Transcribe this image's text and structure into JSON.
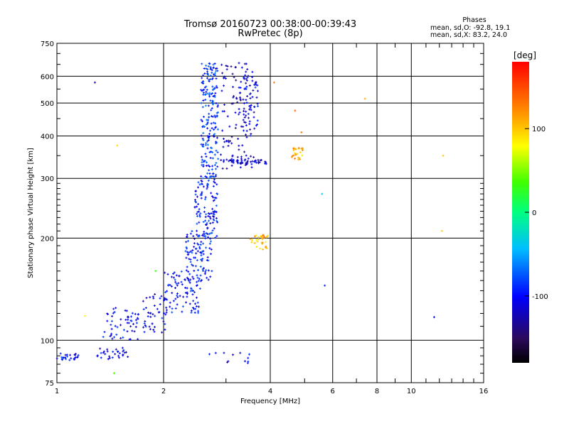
{
  "header": {
    "title_line1": "Tromsø 20160723 00:38:00-00:39:43",
    "title_line2": "RwPretec (8p)",
    "phases_heading": "Phases",
    "phases_o": "mean, sd,O: -92.8, 19.1",
    "phases_x": "mean, sd,X:  83.2, 24.0"
  },
  "colorbar": {
    "label": "[deg]",
    "ticks": [
      "100",
      "0",
      "-100"
    ],
    "tick_values": [
      100,
      0,
      -100
    ],
    "range": [
      -180,
      180
    ]
  },
  "chart_data": {
    "type": "scatter",
    "title": "Tromsø 20160723 00:38:00-00:39:43",
    "subtitle": "RwPretec (8p)",
    "xlabel": "Frequency [MHz]",
    "ylabel": "Stationary phase Virtual Height [km]",
    "x_scale": "log",
    "y_scale": "log",
    "xlim": [
      1,
      16
    ],
    "ylim": [
      75,
      750
    ],
    "x_ticks": [
      1,
      2,
      4,
      6,
      8,
      10,
      16
    ],
    "x_tick_labels": [
      "1",
      "2",
      "4",
      "6",
      "8",
      "10",
      "16"
    ],
    "y_ticks": [
      75,
      100,
      200,
      300,
      400,
      500,
      600,
      750
    ],
    "y_tick_labels": [
      "75",
      "100",
      "200",
      "300",
      "400",
      "500",
      "600",
      "750"
    ],
    "grid": true,
    "colorscale": "phase (deg), rainbow",
    "clusters": [
      {
        "f": [
          1.0,
          1.15
        ],
        "h": [
          87,
          92
        ],
        "phase": -100,
        "n": 25
      },
      {
        "f": [
          1.3,
          1.6
        ],
        "h": [
          88,
          95
        ],
        "phase": -110,
        "n": 30
      },
      {
        "f": [
          1.35,
          1.7
        ],
        "h": [
          100,
          125
        ],
        "phase": -105,
        "n": 55
      },
      {
        "f": [
          1.75,
          2.05
        ],
        "h": [
          105,
          140
        ],
        "phase": -105,
        "n": 45
      },
      {
        "f": [
          2.0,
          2.55
        ],
        "h": [
          120,
          160
        ],
        "phase": -100,
        "n": 90
      },
      {
        "f": [
          2.3,
          2.75
        ],
        "h": [
          150,
          210
        ],
        "phase": -95,
        "n": 90
      },
      {
        "f": [
          2.45,
          2.85
        ],
        "h": [
          200,
          300
        ],
        "phase": -95,
        "n": 110
      },
      {
        "f": [
          2.55,
          2.85
        ],
        "h": [
          300,
          660
        ],
        "phase": -85,
        "n": 200
      },
      {
        "f": [
          2.9,
          3.6
        ],
        "h": [
          320,
          660
        ],
        "phase": -120,
        "n": 120
      },
      {
        "f": [
          3.05,
          3.9
        ],
        "h": [
          330,
          340
        ],
        "phase": -115,
        "n": 40
      },
      {
        "f": [
          3.25,
          3.7
        ],
        "h": [
          400,
          600
        ],
        "phase": -105,
        "n": 50
      },
      {
        "f": [
          3.5,
          3.95
        ],
        "h": [
          185,
          205
        ],
        "phase": 105,
        "n": 30
      },
      {
        "f": [
          4.6,
          4.95
        ],
        "h": [
          340,
          370
        ],
        "phase": 110,
        "n": 25
      },
      {
        "f": [
          2.6,
          3.5
        ],
        "h": [
          85,
          92
        ],
        "phase": -100,
        "n": 12
      }
    ],
    "isolated_points": [
      {
        "f": 1.28,
        "h": 575,
        "phase": -110
      },
      {
        "f": 1.48,
        "h": 375,
        "phase": 95
      },
      {
        "f": 4.9,
        "h": 410,
        "phase": 130
      },
      {
        "f": 4.7,
        "h": 475,
        "phase": 140
      },
      {
        "f": 7.4,
        "h": 515,
        "phase": 110
      },
      {
        "f": 12.3,
        "h": 350,
        "phase": 100
      },
      {
        "f": 12.2,
        "h": 210,
        "phase": 95
      },
      {
        "f": 5.6,
        "h": 270,
        "phase": -40
      },
      {
        "f": 5.7,
        "h": 145,
        "phase": -90
      },
      {
        "f": 11.6,
        "h": 117,
        "phase": -110
      },
      {
        "f": 4.1,
        "h": 575,
        "phase": 130
      },
      {
        "f": 1.9,
        "h": 160,
        "phase": 30
      },
      {
        "f": 1.2,
        "h": 118,
        "phase": 80
      },
      {
        "f": 1.45,
        "h": 80,
        "phase": 40
      }
    ]
  }
}
